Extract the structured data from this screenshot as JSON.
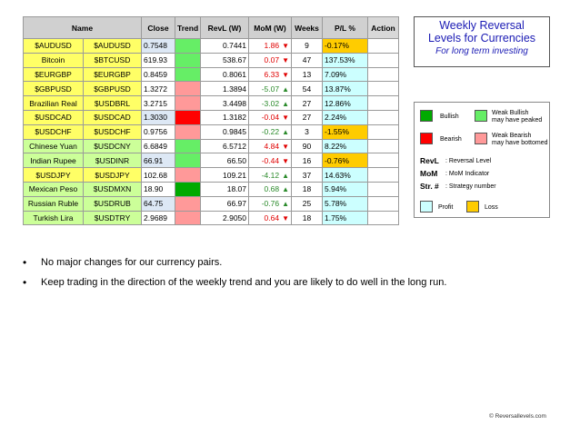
{
  "table": {
    "headers": [
      "Name",
      "Close",
      "Trend",
      "RevL (W)",
      "MoM (W)",
      "Weeks",
      "P/L %",
      "Action"
    ],
    "rows": [
      {
        "name": "$AUDUSD",
        "symbol": "$AUDUSD",
        "close": "0.7548",
        "revl": "0.7441",
        "mom": "1.86",
        "mom_dir": "down",
        "weeks": "9",
        "pl": "-0.17%"
      },
      {
        "name": "Bitcoin",
        "symbol": "$BTCUSD",
        "close": "619.93",
        "revl": "538.67",
        "mom": "0.07",
        "mom_dir": "down",
        "weeks": "47",
        "pl": "137.53%"
      },
      {
        "name": "$EURGBP",
        "symbol": "$EURGBP",
        "close": "0.8459",
        "revl": "0.8061",
        "mom": "6.33",
        "mom_dir": "down",
        "weeks": "13",
        "pl": "7.09%"
      },
      {
        "name": "$GBPUSD",
        "symbol": "$GBPUSD",
        "close": "1.3272",
        "revl": "1.3894",
        "mom": "-5.07",
        "mom_dir": "up",
        "weeks": "54",
        "pl": "13.87%"
      },
      {
        "name": "Brazilian Real",
        "symbol": "$USDBRL",
        "close": "3.2715",
        "revl": "3.4498",
        "mom": "-3.02",
        "mom_dir": "up",
        "weeks": "27",
        "pl": "12.86%"
      },
      {
        "name": "$USDCAD",
        "symbol": "$USDCAD",
        "close": "1.3030",
        "revl": "1.3182",
        "mom": "-0.04",
        "mom_dir": "down",
        "weeks": "27",
        "pl": "2.24%"
      },
      {
        "name": "$USDCHF",
        "symbol": "$USDCHF",
        "close": "0.9756",
        "revl": "0.9845",
        "mom": "-0.22",
        "mom_dir": "up",
        "weeks": "3",
        "pl": "-1.55%"
      },
      {
        "name": "Chinese Yuan",
        "symbol": "$USDCNY",
        "close": "6.6849",
        "revl": "6.5712",
        "mom": "4.84",
        "mom_dir": "down",
        "weeks": "90",
        "pl": "8.22%"
      },
      {
        "name": "Indian Rupee",
        "symbol": "$USDINR",
        "close": "66.91",
        "revl": "66.50",
        "mom": "-0.44",
        "mom_dir": "down",
        "weeks": "16",
        "pl": "-0.76%"
      },
      {
        "name": "$USDJPY",
        "symbol": "$USDJPY",
        "close": "102.68",
        "revl": "109.21",
        "mom": "-4.12",
        "mom_dir": "up",
        "weeks": "37",
        "pl": "14.63%"
      },
      {
        "name": "Mexican Peso",
        "symbol": "$USDMXN",
        "close": "18.90",
        "revl": "18.07",
        "mom": "0.68",
        "mom_dir": "up",
        "weeks": "18",
        "pl": "5.94%"
      },
      {
        "name": "Russian Ruble",
        "symbol": "$USDRUB",
        "close": "64.75",
        "revl": "66.97",
        "mom": "-0.76",
        "mom_dir": "up",
        "weeks": "25",
        "pl": "5.78%"
      },
      {
        "name": "Turkish Lira",
        "symbol": "$USDTRY",
        "close": "2.9689",
        "revl": "2.9050",
        "mom": "0.64",
        "mom_dir": "down",
        "weeks": "18",
        "pl": "1.75%"
      }
    ],
    "row_colors": {
      "name_bg": [
        "#ffff66",
        "#ffff66",
        "#ffff66",
        "#ffff66",
        "#ffff66",
        "#ffff66",
        "#ffff66",
        "#ccff99",
        "#ccff99",
        "#ffff66",
        "#ccff99",
        "#ccff99",
        "#ccff99"
      ],
      "close_bg": [
        "#dde8f5",
        "#ffffff",
        "#ffffff",
        "#ffffff",
        "#ffffff",
        "#dde8f5",
        "#ffffff",
        "#ffffff",
        "#dde8f5",
        "#ffffff",
        "#ffffff",
        "#dde8f5",
        "#ffffff"
      ],
      "trend": [
        "#66ee66",
        "#66ee66",
        "#66ee66",
        "#ff9999",
        "#ff9999",
        "#ff0000",
        "#ff9999",
        "#66ee66",
        "#66ee66",
        "#ff9999",
        "#00aa00",
        "#ff9999",
        "#ff9999"
      ],
      "pl_bg": [
        "#ffcc00",
        "#ccffff",
        "#ccffff",
        "#ccffff",
        "#ccffff",
        "#ccffff",
        "#ffcc00",
        "#ccffff",
        "#ffcc00",
        "#ccffff",
        "#ccffff",
        "#ccffff",
        "#ccffff"
      ]
    }
  },
  "title": {
    "line1": "Weekly Reversal",
    "line2": "Levels for Currencies",
    "subtitle": "For long term investing"
  },
  "legend": {
    "bullish": "Bullish",
    "weak_bullish_1": "Weak Bullish",
    "weak_bullish_2": "may have peaked",
    "bearish": "Bearish",
    "weak_bearish_1": "Weak Bearish",
    "weak_bearish_2": "may have bottomed",
    "revl_abbr": "RevL",
    "revl_desc": ": Reversal Level",
    "mom_abbr": "MoM",
    "mom_desc": ": MoM Indicator",
    "str_abbr": "Str. #",
    "str_desc": ": Strategy number",
    "profit": "Profit",
    "loss": "Loss",
    "colors": {
      "bullish": "#00aa00",
      "weak_bullish": "#66ee66",
      "bearish": "#ff0000",
      "weak_bearish": "#ff9999",
      "profit": "#ccffff",
      "loss": "#ffcc00"
    }
  },
  "bullets": [
    "No major changes for our currency pairs.",
    "Keep trading in the direction of the weekly trend and you are likely to do well in the long run."
  ],
  "bullet_symbol": "•",
  "arrows": {
    "up": "▲",
    "down": "▼"
  },
  "copyright": "© Reversallevels.com"
}
